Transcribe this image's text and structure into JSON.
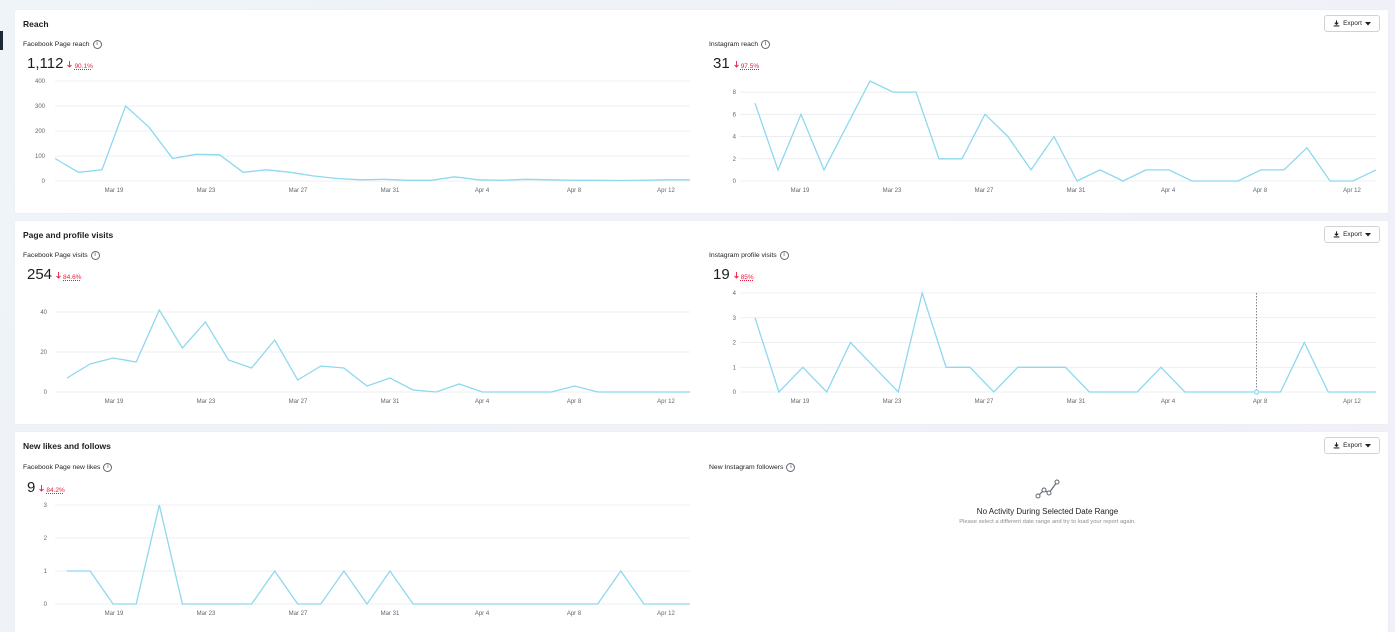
{
  "colors": {
    "line": "#8ed8f0",
    "grid": "#e8eaed",
    "delta": "#e41e3f"
  },
  "x_labels": [
    "Mar 19",
    "Mar 23",
    "Mar 27",
    "Mar 31",
    "Apr 4",
    "Apr 8",
    "Apr 12"
  ],
  "export_label": "Export",
  "sections": {
    "reach": {
      "title": "Reach"
    },
    "visits": {
      "title": "Page and profile visits"
    },
    "likes": {
      "title": "New likes and follows"
    }
  },
  "empty": {
    "title": "No Activity During Selected Date Range",
    "subtitle": "Please select a different date range and try to load your report again."
  },
  "chart_data": [
    {
      "id": "fb_reach",
      "type": "line",
      "title": "Facebook Page reach",
      "total": "1,112",
      "change": "90.1%",
      "direction": "down",
      "ylim": [
        0,
        400
      ],
      "yticks": [
        0,
        100,
        200,
        300,
        400
      ],
      "values": [
        90,
        35,
        45,
        300,
        215,
        90,
        107,
        105,
        35,
        45,
        35,
        20,
        10,
        5,
        7,
        3,
        3,
        17,
        5,
        3,
        7,
        5,
        3,
        3,
        2,
        3,
        5,
        5
      ]
    },
    {
      "id": "ig_reach",
      "type": "line",
      "title": "Instagram reach",
      "total": "31",
      "change": "97.5%",
      "direction": "down",
      "ylim": [
        0,
        9
      ],
      "yticks": [
        0,
        2,
        4,
        6,
        8
      ],
      "values": [
        7,
        1,
        6,
        1,
        5,
        9,
        8,
        8,
        2,
        2,
        6,
        4,
        1,
        4,
        0,
        1,
        0,
        1,
        1,
        0,
        0,
        0,
        1,
        1,
        3,
        0,
        0,
        1
      ]
    },
    {
      "id": "fb_visits",
      "type": "line",
      "title": "Facebook Page visits",
      "total": "254",
      "change": "84.6%",
      "direction": "down",
      "ylim": [
        0,
        44
      ],
      "yticks": [
        0,
        20,
        40
      ],
      "values": [
        7,
        14,
        17,
        15,
        41,
        22,
        35,
        16,
        12,
        26,
        6,
        13,
        12,
        3,
        7,
        1,
        0,
        4,
        0,
        0,
        0,
        0,
        3,
        0,
        0,
        0,
        0,
        0
      ]
    },
    {
      "id": "ig_visits",
      "type": "line",
      "title": "Instagram profile visits",
      "total": "19",
      "change": "85%",
      "direction": "down",
      "ylim": [
        0,
        4
      ],
      "yticks": [
        0,
        1,
        2,
        3,
        4
      ],
      "values": [
        3,
        0,
        1,
        0,
        2,
        1,
        0,
        4,
        1,
        1,
        0,
        1,
        1,
        1,
        0,
        0,
        0,
        1,
        0,
        0,
        0,
        0,
        0,
        2,
        0,
        0,
        0
      ],
      "hover_index": 21
    },
    {
      "id": "fb_likes",
      "type": "line",
      "title": "Facebook Page new likes",
      "total": "9",
      "change": "84.2%",
      "direction": "down",
      "ylim": [
        0,
        3
      ],
      "yticks": [
        0,
        1,
        2,
        3
      ],
      "values": [
        1,
        1,
        0,
        0,
        3,
        0,
        0,
        0,
        0,
        1,
        0,
        0,
        1,
        0,
        1,
        0,
        0,
        0,
        0,
        0,
        0,
        0,
        0,
        0,
        1,
        0,
        0,
        0
      ]
    },
    {
      "id": "ig_followers",
      "type": "line",
      "title": "New Instagram followers",
      "values": []
    }
  ]
}
